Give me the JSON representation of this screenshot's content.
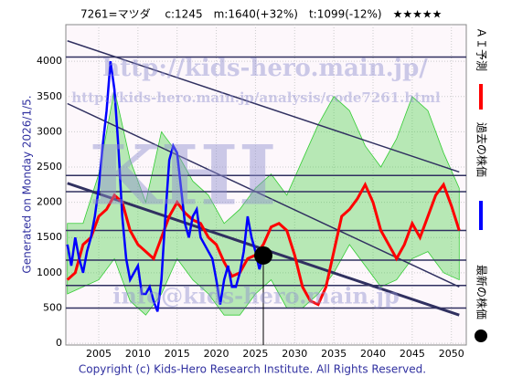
{
  "chart_data": {
    "type": "line",
    "title": "7261=マツダ　 c:1245　m:1640(+32%)　t:1099(-12%)　★★★★★",
    "generated": "Generated on Monday 2026/1/5.",
    "copyright": "Copyright (c) Kids-Hero Research Institute. All Rights Reserved.",
    "watermarks": [
      "http://kids-hero.main.jp/",
      "http://kids-hero.main.jp/analysis/code7261.html",
      "KHI",
      "info@kids-hero.main.jp"
    ],
    "xlim": [
      2000.8,
      2051.9
    ],
    "ylim": [
      -25,
      4520
    ],
    "xticks": [
      2005,
      2010,
      2015,
      2020,
      2025,
      2030,
      2035,
      2040,
      2045,
      2050
    ],
    "yticks": [
      0,
      500,
      1000,
      1500,
      2000,
      2500,
      3000,
      3500,
      4000
    ],
    "grid": true,
    "series": [
      {
        "name": "ＡＩ予測",
        "color": "#ff0000",
        "x": [
          2001,
          2002,
          2003,
          2004,
          2005,
          2006,
          2007,
          2008,
          2009,
          2010,
          2011,
          2012,
          2013,
          2014,
          2015,
          2016,
          2017,
          2018,
          2019,
          2020,
          2021,
          2022,
          2023,
          2024,
          2025,
          2026,
          2027,
          2028,
          2029,
          2030,
          2031,
          2032,
          2033,
          2034,
          2035,
          2036,
          2037,
          2038,
          2039,
          2040,
          2041,
          2042,
          2043,
          2044,
          2045,
          2046,
          2047,
          2048,
          2049,
          2050,
          2051
        ],
        "values": [
          900,
          1000,
          1400,
          1500,
          1800,
          1900,
          2100,
          2000,
          1600,
          1400,
          1300,
          1200,
          1500,
          1800,
          2000,
          1850,
          1750,
          1700,
          1500,
          1400,
          1150,
          950,
          1000,
          1200,
          1250,
          1400,
          1650,
          1700,
          1600,
          1250,
          800,
          600,
          550,
          800,
          1300,
          1800,
          1900,
          2050,
          2250,
          2000,
          1600,
          1400,
          1200,
          1400,
          1700,
          1500,
          1800,
          2100,
          2250,
          1950,
          1600
        ]
      },
      {
        "name": "過去の株価",
        "color": "#0000ff",
        "x": [
          2001,
          2001.5,
          2002,
          2002.5,
          2003,
          2003.5,
          2004,
          2004.5,
          2005,
          2005.5,
          2006,
          2006.5,
          2007,
          2007.5,
          2008,
          2008.5,
          2009,
          2009.5,
          2010,
          2010.5,
          2011,
          2011.5,
          2012,
          2012.5,
          2013,
          2013.5,
          2014,
          2014.5,
          2015,
          2015.5,
          2016,
          2016.5,
          2017,
          2017.5,
          2018,
          2018.5,
          2019,
          2019.5,
          2020,
          2020.5,
          2021,
          2021.5,
          2022,
          2022.5,
          2023,
          2023.5,
          2024,
          2024.5,
          2025,
          2025.5,
          2026
        ],
        "values": [
          1400,
          1100,
          1500,
          1200,
          1000,
          1300,
          1500,
          1800,
          2200,
          2800,
          3300,
          4000,
          3600,
          2800,
          1800,
          1200,
          900,
          1000,
          1100,
          700,
          700,
          800,
          600,
          450,
          900,
          1800,
          2600,
          2800,
          2700,
          2200,
          1700,
          1500,
          1800,
          1900,
          1500,
          1400,
          1300,
          1200,
          900,
          550,
          900,
          1100,
          800,
          800,
          1000,
          1300,
          1800,
          1500,
          1300,
          1050,
          1245
        ]
      }
    ],
    "latest": {
      "name": "最新の株価",
      "color": "#000000",
      "x": 2026,
      "value": 1245
    },
    "bands": {
      "color": "#33cc33",
      "x": [
        2001,
        2003,
        2005,
        2007,
        2009,
        2011,
        2013,
        2015,
        2017,
        2019,
        2021,
        2023,
        2025,
        2027,
        2029,
        2031,
        2033,
        2035,
        2037,
        2039,
        2041,
        2043,
        2045,
        2047,
        2049,
        2051
      ],
      "upper": [
        1700,
        1700,
        2400,
        3600,
        2600,
        2000,
        3000,
        2700,
        2300,
        2100,
        1700,
        1900,
        2200,
        2400,
        2100,
        2600,
        3100,
        3500,
        3300,
        2800,
        2500,
        2900,
        3500,
        3300,
        2700,
        2200
      ],
      "lower": [
        700,
        800,
        900,
        1200,
        600,
        400,
        700,
        1200,
        900,
        700,
        400,
        400,
        700,
        900,
        500,
        500,
        700,
        1000,
        1400,
        1100,
        800,
        900,
        1200,
        1300,
        1000,
        900
      ]
    },
    "levels": {
      "color": "#303060",
      "values": [
        4060,
        2380,
        2150,
        1600,
        1180,
        820,
        500
      ]
    },
    "trend_lines": {
      "color": "#303060",
      "x": [
        2001,
        2051
      ],
      "lines": [
        [
          4290,
          2430
        ],
        [
          3400,
          800
        ],
        [
          2270,
          400
        ]
      ]
    }
  }
}
